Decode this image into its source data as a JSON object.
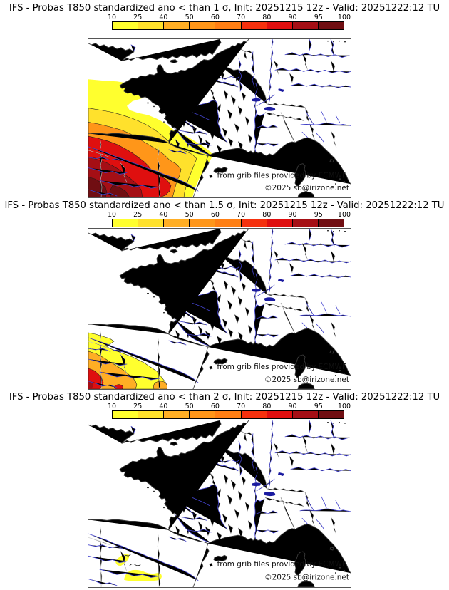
{
  "page": {
    "background": "#ffffff"
  },
  "panels": [
    {
      "title": "IFS - Probas T850  standardized ano < than 1 σ, Init: 20251215 12z - Valid: 20251222:12 TU"
    },
    {
      "title": "IFS - Probas T850  standardized ano < than 1.5 σ, Init: 20251215 12z - Valid: 20251222:12 TU"
    },
    {
      "title": "IFS - Probas T850  standardized ano < than 2 σ, Init: 20251215 12z - Valid: 20251222:12 TU"
    }
  ],
  "colorbar": {
    "ticks": [
      "10",
      "25",
      "40",
      "50",
      "60",
      "70",
      "80",
      "90",
      "95",
      "100"
    ],
    "colors": [
      "#FFFF2E",
      "#FFE12C",
      "#FFAE24",
      "#FF9619",
      "#FF7F14",
      "#F5310E",
      "#DF0F0F",
      "#A50F15",
      "#700E12"
    ]
  },
  "credits": {
    "line1": "from grib files provided by ECMWF",
    "line2": "©2025 sb@irizone.net"
  },
  "map_colors": {
    "coast": "#3a3a3a",
    "border": "#8a8a8a",
    "dept": "#c9c9c9",
    "river": "#4444d0",
    "lake": "#1a1aa0"
  },
  "chart_data": {
    "type": "heatmap",
    "title": "IFS probability of T850 standardized anomaly below thresholds (1, 1.5, 2 sigma)",
    "legend_scale_percent": [
      10,
      25,
      40,
      50,
      60,
      70,
      80,
      90,
      95,
      100
    ],
    "panels": [
      {
        "threshold_sigma": 1,
        "shading_extent": "large maximum over NE Spain / SW of domain, peak > 95% in bottom-left corner, yellow fringe reaching Bay of Biscay and Mediterranean Spanish coast"
      },
      {
        "threshold_sigma": 1.5,
        "shading_extent": "smaller maximum confined to bottom-left (N Spain), peak ~ 80-90% at left edge near bottom"
      },
      {
        "threshold_sigma": 2,
        "shading_extent": "two small 10-25% yellow patches near bottom-left (Ebro region)"
      }
    ],
    "init": "20251215 12z",
    "valid": "20251222:12 TU",
    "model": "IFS",
    "field": "T850"
  }
}
